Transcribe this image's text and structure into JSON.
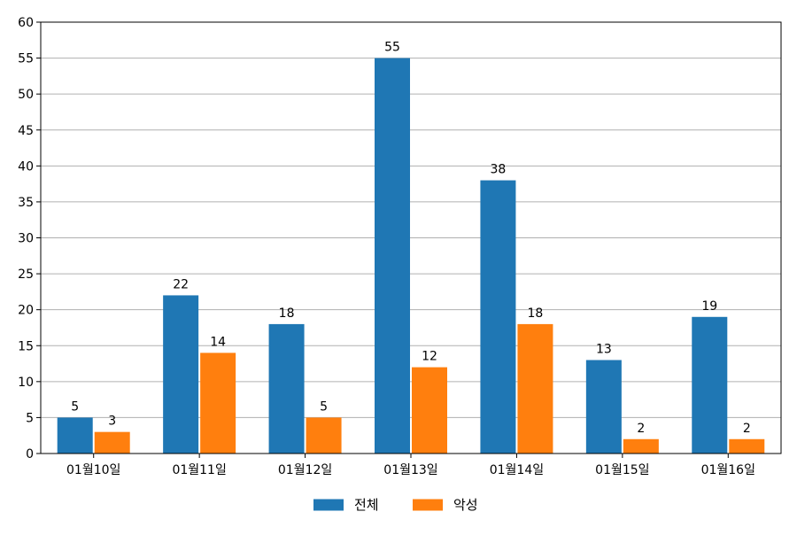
{
  "chart_data": {
    "type": "bar",
    "categories": [
      "01월10일",
      "01월11일",
      "01월12일",
      "01월13일",
      "01월14일",
      "01월15일",
      "01월16일"
    ],
    "series": [
      {
        "name": "전체",
        "values": [
          5,
          22,
          18,
          55,
          38,
          13,
          19
        ],
        "color": "#1f77b4"
      },
      {
        "name": "악성",
        "values": [
          3,
          14,
          5,
          12,
          18,
          2,
          2
        ],
        "color": "#ff7f0e"
      }
    ],
    "ylim": [
      0,
      60
    ],
    "yticks": [
      0,
      5,
      10,
      15,
      20,
      25,
      30,
      35,
      40,
      45,
      50,
      55,
      60
    ],
    "grid": true,
    "legend_position": "bottom-center"
  }
}
